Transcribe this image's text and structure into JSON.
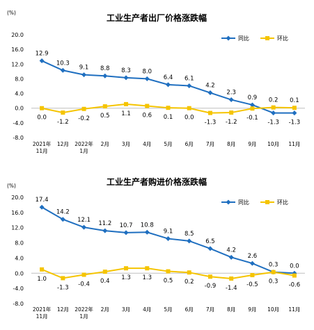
{
  "chart_data": [
    {
      "type": "line",
      "title": "工业生产者出厂价格涨跌幅",
      "unit": "(%)",
      "ylim": [
        -8.0,
        20.0
      ],
      "yticks": [
        "20.0",
        "16.0",
        "12.0",
        "8.0",
        "4.0",
        "0.0",
        "-4.0",
        "-8.0"
      ],
      "categories": [
        [
          "2021年",
          "11月"
        ],
        [
          "12月"
        ],
        [
          "2022年",
          "1月"
        ],
        [
          "2月"
        ],
        [
          "3月"
        ],
        [
          "4月"
        ],
        [
          "5月"
        ],
        [
          "6月"
        ],
        [
          "7月"
        ],
        [
          "8月"
        ],
        [
          "9月"
        ],
        [
          "10月"
        ],
        [
          "11月"
        ]
      ],
      "legend_position": "top-right",
      "series": [
        {
          "name": "同比",
          "color": "#1f6fc0",
          "marker": "diamond",
          "values": [
            12.9,
            10.3,
            9.1,
            8.8,
            8.3,
            8.0,
            6.4,
            6.1,
            4.2,
            2.3,
            0.9,
            -1.3,
            -1.3
          ],
          "labels": [
            "12.9",
            "10.3",
            "9.1",
            "8.8",
            "8.3",
            "8.0",
            "6.4",
            "6.1",
            "4.2",
            "2.3",
            "0.9",
            "-1.3",
            "-1.3"
          ]
        },
        {
          "name": "环比",
          "color": "#f5c400",
          "marker": "square",
          "values": [
            0.0,
            -1.2,
            -0.2,
            0.5,
            1.1,
            0.6,
            0.1,
            0.0,
            -1.3,
            -1.2,
            -0.1,
            0.2,
            0.1
          ],
          "labels": [
            "0.0",
            "-1.2",
            "-0.2",
            "0.5",
            "1.1",
            "0.6",
            "0.1",
            "0.0",
            "-1.3",
            "-1.2",
            "-0.1",
            "0.2",
            "0.1"
          ]
        }
      ]
    },
    {
      "type": "line",
      "title": "工业生产者购进价格涨跌幅",
      "unit": "(%)",
      "ylim": [
        -8.0,
        20.0
      ],
      "yticks": [
        "20.0",
        "16.0",
        "12.0",
        "8.0",
        "4.0",
        "0.0",
        "-4.0",
        "-8.0"
      ],
      "categories": [
        [
          "2021年",
          "11月"
        ],
        [
          "12月"
        ],
        [
          "2022年",
          "1月"
        ],
        [
          "2月"
        ],
        [
          "3月"
        ],
        [
          "4月"
        ],
        [
          "5月"
        ],
        [
          "6月"
        ],
        [
          "7月"
        ],
        [
          "8月"
        ],
        [
          "9月"
        ],
        [
          "10月"
        ],
        [
          "11月"
        ]
      ],
      "legend_position": "top-right",
      "series": [
        {
          "name": "同比",
          "color": "#1f6fc0",
          "marker": "diamond",
          "values": [
            17.4,
            14.2,
            12.1,
            11.2,
            10.7,
            10.8,
            9.1,
            8.5,
            6.5,
            4.2,
            2.6,
            0.3,
            0.0
          ],
          "labels": [
            "17.4",
            "14.2",
            "12.1",
            "11.2",
            "10.7",
            "10.8",
            "9.1",
            "8.5",
            "6.5",
            "4.2",
            "2.6",
            "0.3",
            "0.0"
          ]
        },
        {
          "name": "环比",
          "color": "#f5c400",
          "marker": "square",
          "values": [
            1.0,
            -1.3,
            -0.4,
            0.4,
            1.3,
            1.3,
            0.5,
            0.2,
            -0.9,
            -1.4,
            -0.5,
            0.3,
            -0.6
          ],
          "labels": [
            "1.0",
            "-1.3",
            "-0.4",
            "0.4",
            "1.3",
            "1.3",
            "0.5",
            "0.2",
            "-0.9",
            "-1.4",
            "-0.5",
            "0.3",
            "-0.6"
          ]
        }
      ]
    }
  ]
}
